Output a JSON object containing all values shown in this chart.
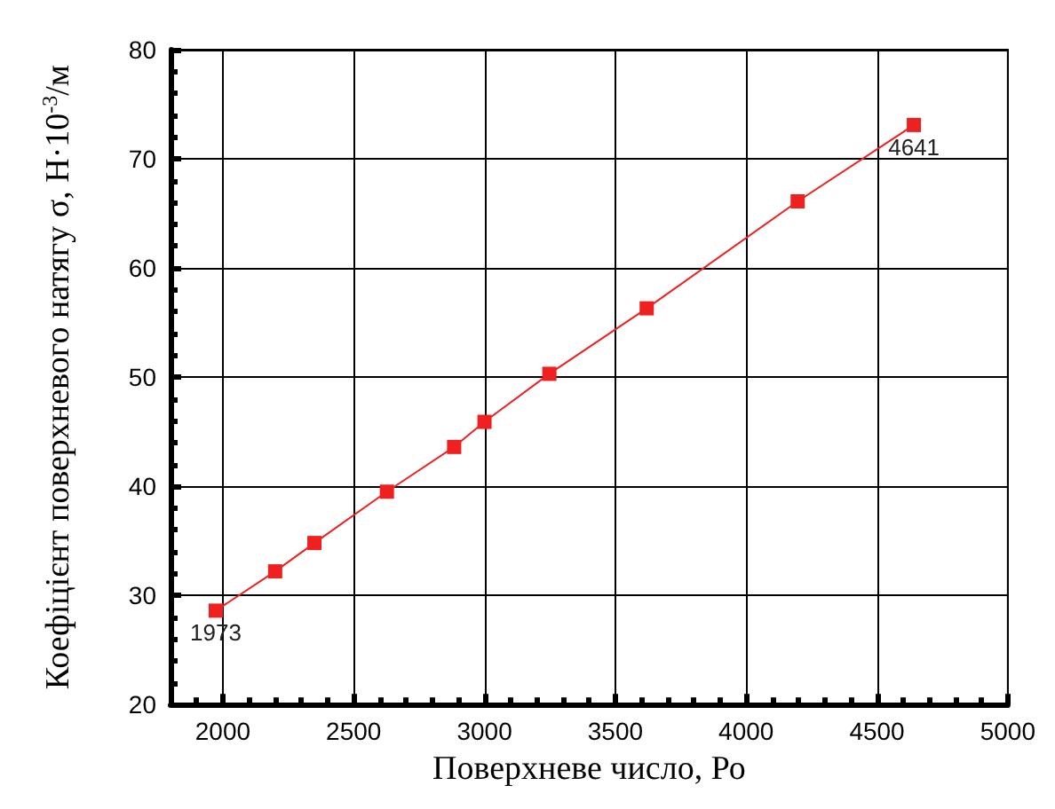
{
  "chart_data": {
    "type": "line",
    "xlabel": "Поверхневе число, Ро",
    "ylabel": "Коефіцієнт поверхневого натягу σ, Н·10$^{-3}$/м",
    "x": [
      1973,
      2200,
      2350,
      2627,
      2884,
      3000,
      3248,
      3620,
      4197,
      4641
    ],
    "series": [
      {
        "color": "#ee2020",
        "values": [
          28.6,
          32.2,
          34.8,
          39.5,
          43.6,
          45.9,
          50.3,
          56.3,
          66.1,
          73.1
        ]
      }
    ],
    "xlim": [
      1800,
      5000
    ],
    "xticks": [
      2000,
      2500,
      3000,
      3500,
      4000,
      4500,
      5000
    ],
    "ylim": [
      20,
      80
    ],
    "yticks": [
      20,
      30,
      40,
      50,
      60,
      70,
      80
    ],
    "grid": true,
    "marker": "square",
    "line_style": "solid",
    "annotations": [
      {
        "text": "1973",
        "x": 1973,
        "y": 28.6
      },
      {
        "text": "4641",
        "x": 4641,
        "y": 73.1
      }
    ]
  }
}
